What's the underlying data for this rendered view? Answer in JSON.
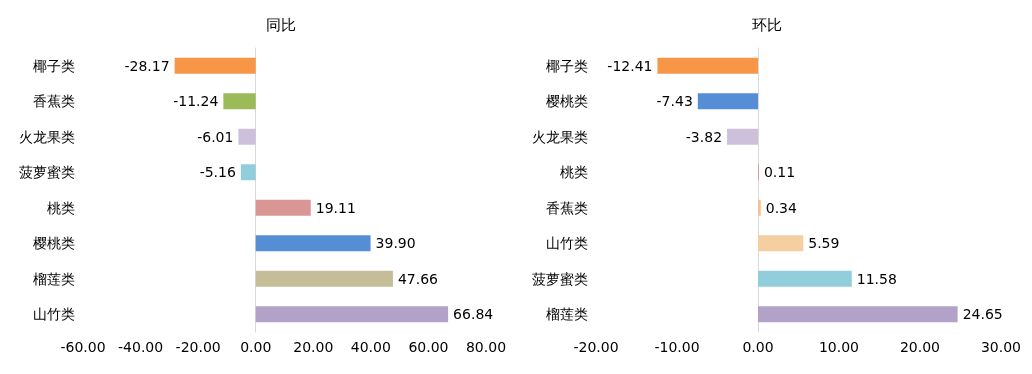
{
  "chart_data": [
    {
      "type": "bar",
      "orientation": "horizontal",
      "title": "同比",
      "categories": [
        "椰子类",
        "香蕉类",
        "火龙果类",
        "菠萝蜜类",
        "桃类",
        "樱桃类",
        "榴莲类",
        "山竹类"
      ],
      "values": [
        -28.17,
        -11.24,
        -6.01,
        -5.16,
        19.11,
        39.9,
        47.66,
        66.84
      ],
      "value_labels": [
        "-28.17",
        "-11.24",
        "-6.01",
        "-5.16",
        "19.11",
        "39.90",
        "47.66",
        "66.84"
      ],
      "colors": [
        "#f79646",
        "#9bbb59",
        "#ccc0da",
        "#92cddc",
        "#da9694",
        "#558ed5",
        "#c4bd97",
        "#b3a2c7"
      ],
      "xlim": [
        -60,
        80
      ],
      "xticks": [
        {
          "value": -60,
          "label": "-60.00"
        },
        {
          "value": -40,
          "label": "-40.00"
        },
        {
          "value": -20,
          "label": "-20.00"
        },
        {
          "value": 0,
          "label": "0.00"
        },
        {
          "value": 20,
          "label": "20.00"
        },
        {
          "value": 40,
          "label": "40.00"
        },
        {
          "value": 60,
          "label": "60.00"
        },
        {
          "value": 80,
          "label": "80.00"
        }
      ]
    },
    {
      "type": "bar",
      "orientation": "horizontal",
      "title": "环比",
      "categories": [
        "椰子类",
        "樱桃类",
        "火龙果类",
        "桃类",
        "香蕉类",
        "山竹类",
        "菠萝蜜类",
        "榴莲类"
      ],
      "values": [
        -12.41,
        -7.43,
        -3.82,
        0.11,
        0.34,
        5.59,
        11.58,
        24.65
      ],
      "value_labels": [
        "-12.41",
        "-7.43",
        "-3.82",
        "0.11",
        "0.34",
        "5.59",
        "11.58",
        "24.65"
      ],
      "colors": [
        "#f79646",
        "#558ed5",
        "#ccc0da",
        "#da9694",
        "#fac090",
        "#f5cfa0",
        "#92cddc",
        "#b3a2c7"
      ],
      "xlim": [
        -20,
        30
      ],
      "xticks": [
        {
          "value": -20,
          "label": "-20.00"
        },
        {
          "value": -10,
          "label": "-10.00"
        },
        {
          "value": 0,
          "label": "0.00"
        },
        {
          "value": 10,
          "label": "10.00"
        },
        {
          "value": 20,
          "label": "20.00"
        },
        {
          "value": 30,
          "label": "30.00"
        }
      ]
    }
  ]
}
